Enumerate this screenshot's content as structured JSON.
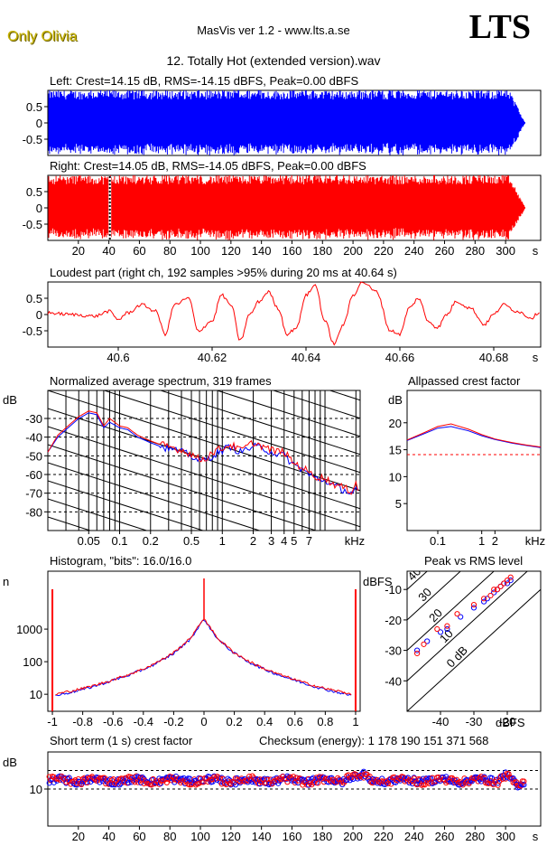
{
  "header": {
    "brand": "Only Olivia",
    "app_title": "MasVis ver 1.2 - www.lts.a.se",
    "logo": "LTS",
    "track_title": "12. Totally Hot (extended version).wav"
  },
  "colors": {
    "left": "#0000ff",
    "right": "#ff0000"
  },
  "chart_data": [
    {
      "type": "area",
      "id": "left-waveform",
      "title": "Left: Crest=14.15 dB, RMS=-14.15 dBFS, Peak=0.00 dBFS",
      "series": [
        {
          "name": "Left"
        }
      ],
      "ylim": [
        -1,
        1
      ],
      "yticks": [
        "0.5",
        "0",
        "-0.5"
      ],
      "yticks_v": [
        0.5,
        0,
        -0.5
      ],
      "xlim": [
        0,
        323
      ],
      "duration_s": 313
    },
    {
      "type": "area",
      "id": "right-waveform",
      "title": "Right: Crest=14.05 dB, RMS=-14.05 dBFS, Peak=0.00 dBFS",
      "series": [
        {
          "name": "Right"
        }
      ],
      "ylim": [
        -1,
        1
      ],
      "yticks": [
        "0.5",
        "0",
        "-0.5"
      ],
      "yticks_v": [
        0.5,
        0,
        -0.5
      ],
      "xlim": [
        0,
        323
      ],
      "marker_s": 40.64,
      "xticks": [
        "20",
        "40",
        "60",
        "80",
        "100",
        "120",
        "140",
        "160",
        "180",
        "200",
        "220",
        "240",
        "260",
        "280",
        "300",
        "s"
      ],
      "xticks_v": [
        20,
        40,
        60,
        80,
        100,
        120,
        140,
        160,
        180,
        200,
        220,
        240,
        260,
        280,
        300
      ]
    },
    {
      "type": "line",
      "id": "loudest-part",
      "title": "Loudest part (right ch, 192 samples >95% during 20 ms at 40.64 s)",
      "xlim": [
        40.585,
        40.69
      ],
      "ylim": [
        -1,
        1
      ],
      "yticks": [
        "0.5",
        "0",
        "-0.5"
      ],
      "yticks_v": [
        0.5,
        0,
        -0.5
      ],
      "xticks": [
        "40.6",
        "40.62",
        "40.64",
        "40.66",
        "40.68",
        "s"
      ],
      "xticks_v": [
        40.6,
        40.62,
        40.64,
        40.66,
        40.68
      ],
      "series": [
        {
          "name": "Right",
          "x": [
            40.585,
            40.59,
            40.595,
            40.598,
            40.6,
            40.602,
            40.605,
            40.608,
            40.61,
            40.612,
            40.615,
            40.617,
            40.62,
            40.622,
            40.624,
            40.626,
            40.628,
            40.63,
            40.632,
            40.634,
            40.636,
            40.638,
            40.64,
            40.642,
            40.644,
            40.646,
            40.648,
            40.65,
            40.652,
            40.655,
            40.658,
            40.66,
            40.662,
            40.664,
            40.666,
            40.668,
            40.67,
            40.672,
            40.675,
            40.678,
            40.68,
            40.682,
            40.685,
            40.688,
            40.69
          ],
          "y": [
            0.05,
            0.0,
            -0.05,
            0.1,
            -0.15,
            0.05,
            0.3,
            0.1,
            -0.6,
            0.3,
            0.5,
            -0.5,
            -0.2,
            0.6,
            0.3,
            -0.8,
            0.0,
            0.4,
            0.7,
            0.2,
            -0.6,
            -0.4,
            0.6,
            0.9,
            -0.2,
            -0.9,
            -0.3,
            0.6,
            1.0,
            0.7,
            -0.5,
            -0.6,
            0.2,
            0.5,
            -0.2,
            -0.4,
            0.0,
            0.4,
            0.2,
            -0.3,
            0.0,
            0.3,
            0.1,
            -0.1,
            0.1
          ]
        }
      ]
    },
    {
      "type": "line",
      "id": "avg-spectrum",
      "title": "Normalized average spectrum, 319 frames",
      "ylabel": "dB",
      "xscale": "log",
      "xlim": [
        0.02,
        22
      ],
      "ylim": [
        -90,
        -15
      ],
      "yticks": [
        "-30",
        "-40",
        "-50",
        "-60",
        "-70",
        "-80"
      ],
      "yticks_v": [
        -30,
        -40,
        -50,
        -60,
        -70,
        -80
      ],
      "xticks": [
        "0.05",
        "0.1",
        "0.2",
        "0.5",
        "1",
        "2",
        "3",
        "4",
        "5",
        "7",
        "kHz"
      ],
      "xticks_v": [
        0.05,
        0.1,
        0.2,
        0.5,
        1,
        2,
        3,
        4,
        5,
        7
      ],
      "x": [
        0.02,
        0.025,
        0.03,
        0.04,
        0.05,
        0.06,
        0.07,
        0.08,
        0.1,
        0.12,
        0.15,
        0.2,
        0.25,
        0.3,
        0.4,
        0.5,
        0.6,
        0.7,
        0.8,
        1,
        1.2,
        1.5,
        2,
        2.5,
        3,
        4,
        5,
        6,
        7,
        8,
        10,
        12,
        15,
        18,
        20,
        22
      ],
      "series": [
        {
          "name": "Left",
          "values": [
            -48,
            -40,
            -36,
            -30,
            -27,
            -28,
            -35,
            -32,
            -35,
            -36,
            -40,
            -43,
            -45,
            -46,
            -48,
            -50,
            -53,
            -52,
            -50,
            -47,
            -45,
            -48,
            -45,
            -46,
            -48,
            -50,
            -55,
            -57,
            -60,
            -62,
            -63,
            -66,
            -68,
            -70,
            -68,
            -73
          ]
        },
        {
          "name": "Right",
          "values": [
            -48,
            -39,
            -35,
            -29,
            -26,
            -27,
            -34,
            -30,
            -34,
            -35,
            -39,
            -42,
            -44,
            -45,
            -47,
            -49,
            -52,
            -51,
            -48,
            -46,
            -44,
            -47,
            -43,
            -45,
            -47,
            -48,
            -54,
            -56,
            -59,
            -61,
            -62,
            -65,
            -67,
            -69,
            -64,
            -72
          ]
        }
      ]
    },
    {
      "type": "line",
      "id": "allpassed-crest",
      "title": "Allpassed crest factor",
      "ylabel": "dB",
      "xscale": "log",
      "xlim": [
        0.02,
        22
      ],
      "ylim": [
        0,
        26
      ],
      "yticks": [
        "20",
        "15",
        "10",
        "5"
      ],
      "yticks_v": [
        20,
        15,
        10,
        5
      ],
      "xticks": [
        "0.1",
        "1",
        "2",
        "kHz"
      ],
      "xticks_v": [
        0.1,
        1,
        2
      ],
      "reference_db": 14.1,
      "x": [
        0.02,
        0.05,
        0.1,
        0.2,
        0.5,
        1,
        2,
        5,
        10,
        22
      ],
      "series": [
        {
          "name": "Left",
          "values": [
            16.7,
            18.0,
            19.0,
            19.3,
            18.5,
            17.6,
            16.9,
            16.2,
            15.8,
            15.4
          ]
        },
        {
          "name": "Right",
          "values": [
            16.8,
            18.2,
            19.3,
            19.8,
            18.8,
            17.8,
            17.0,
            16.3,
            15.9,
            15.5
          ]
        }
      ]
    },
    {
      "type": "line",
      "id": "histogram",
      "title": "Histogram, \"bits\": 16.0/16.0",
      "ylabel": "n",
      "yscale": "log",
      "xlim": [
        -1.03,
        1.03
      ],
      "ylim": [
        3,
        60000
      ],
      "yticks": [
        "1000",
        "100",
        "10"
      ],
      "yticks_v": [
        1000,
        100,
        10
      ],
      "xticks": [
        "-1",
        "-0.8",
        "-0.6",
        "-0.4",
        "-0.2",
        "0",
        "0.2",
        "0.4",
        "0.6",
        "0.8",
        "1"
      ],
      "xticks_v": [
        -1,
        -0.8,
        -0.6,
        -0.4,
        -0.2,
        0,
        0.2,
        0.4,
        0.6,
        0.8,
        1
      ],
      "x": [
        -0.98,
        -0.9,
        -0.8,
        -0.7,
        -0.6,
        -0.5,
        -0.4,
        -0.3,
        -0.2,
        -0.1,
        -0.05,
        -0.02,
        0,
        0.02,
        0.05,
        0.1,
        0.2,
        0.3,
        0.4,
        0.5,
        0.6,
        0.7,
        0.8,
        0.9,
        0.98
      ],
      "series": [
        {
          "name": "Left",
          "values": [
            9,
            11,
            14,
            19,
            27,
            38,
            58,
            95,
            180,
            450,
            900,
            1500,
            2000,
            1500,
            900,
            450,
            180,
            95,
            58,
            38,
            27,
            19,
            14,
            11,
            9
          ]
        },
        {
          "name": "Right",
          "values": [
            10,
            12,
            15,
            20,
            28,
            40,
            60,
            100,
            190,
            470,
            950,
            1600,
            2200,
            1600,
            950,
            470,
            190,
            100,
            60,
            40,
            28,
            20,
            15,
            12,
            10
          ]
        }
      ],
      "edge_spikes": [
        -1,
        1
      ],
      "center_spike": 0
    },
    {
      "type": "scatter",
      "id": "peak-vs-rms",
      "title": "Peak vs RMS level",
      "ylabel": "dBFS",
      "xlabel": "dBFS",
      "xlim": [
        -50,
        -10
      ],
      "ylim": [
        -50,
        -4
      ],
      "yticks": [
        "-10",
        "-20",
        "-30",
        "-40"
      ],
      "yticks_v": [
        -10,
        -20,
        -30,
        -40
      ],
      "xticks": [
        "-40",
        "-30",
        "-20"
      ],
      "xticks_v": [
        -40,
        -30,
        -20
      ],
      "crest_lines": [
        "40",
        "30",
        "20",
        "10",
        "0 dB"
      ],
      "crest_lines_v": [
        40,
        30,
        20,
        10,
        0
      ],
      "series": [
        {
          "name": "Left",
          "x": [
            -47,
            -44,
            -40,
            -38,
            -34,
            -30,
            -27,
            -26,
            -24,
            -23,
            -22,
            -21,
            -20,
            -19
          ],
          "y": [
            -30,
            -27,
            -24,
            -23,
            -19,
            -16,
            -14,
            -13,
            -11,
            -10,
            -9,
            -8,
            -8,
            -7
          ]
        },
        {
          "name": "Right",
          "x": [
            -47,
            -45,
            -41,
            -38,
            -35,
            -30,
            -27,
            -25,
            -24,
            -23,
            -22,
            -21,
            -20,
            -19
          ],
          "y": [
            -31,
            -28,
            -23,
            -22,
            -18,
            -15,
            -13,
            -12,
            -10,
            -10,
            -9,
            -8,
            -7,
            -6
          ]
        }
      ]
    },
    {
      "type": "scatter",
      "id": "short-term-crest",
      "title": "Short term (1 s) crest factor",
      "ylabel": "dB",
      "xlim": [
        0,
        323
      ],
      "ylim": [
        0,
        20
      ],
      "yticks": [
        "10"
      ],
      "yticks_v": [
        10
      ],
      "ref_lines": [
        10,
        15
      ],
      "xticks": [
        "20",
        "40",
        "60",
        "80",
        "100",
        "120",
        "140",
        "160",
        "180",
        "200",
        "220",
        "240",
        "260",
        "280",
        "300",
        "s"
      ],
      "xticks_v": [
        20,
        40,
        60,
        80,
        100,
        120,
        140,
        160,
        180,
        200,
        220,
        240,
        260,
        280,
        300
      ]
    }
  ],
  "checksum": "Checksum (energy):  1 178 190 151 371 568"
}
